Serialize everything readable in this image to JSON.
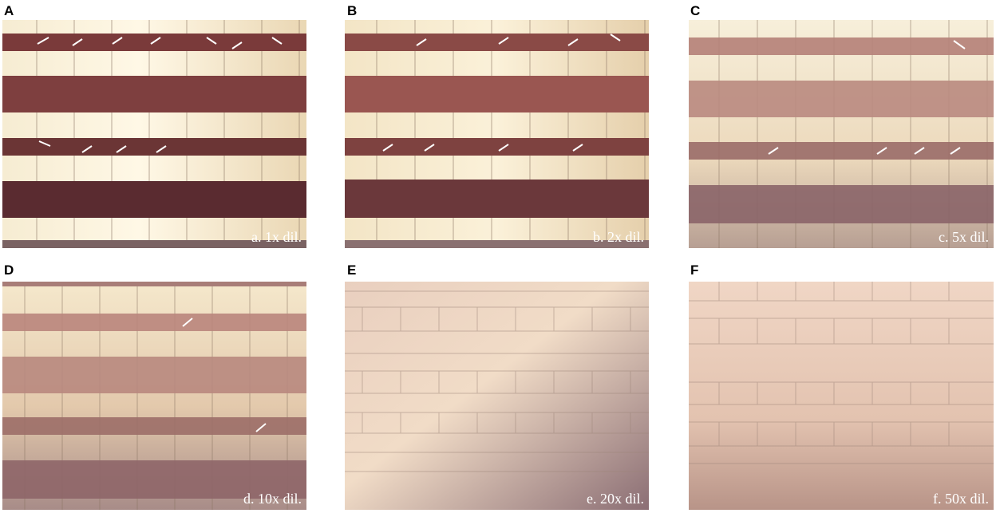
{
  "figure": {
    "panels": [
      {
        "letter": "A",
        "caption": "a. 1x dil.",
        "arrow_count": 12
      },
      {
        "letter": "B",
        "caption": "b. 2x dil.",
        "arrow_count": 9
      },
      {
        "letter": "C",
        "caption": "c. 5x dil.",
        "arrow_count": 5
      },
      {
        "letter": "D",
        "caption": "d. 10x dil.",
        "arrow_count": 2
      },
      {
        "letter": "E",
        "caption": "e. 20x dil.",
        "arrow_count": 0
      },
      {
        "letter": "F",
        "caption": "f. 50x dil.",
        "arrow_count": 0
      }
    ]
  }
}
